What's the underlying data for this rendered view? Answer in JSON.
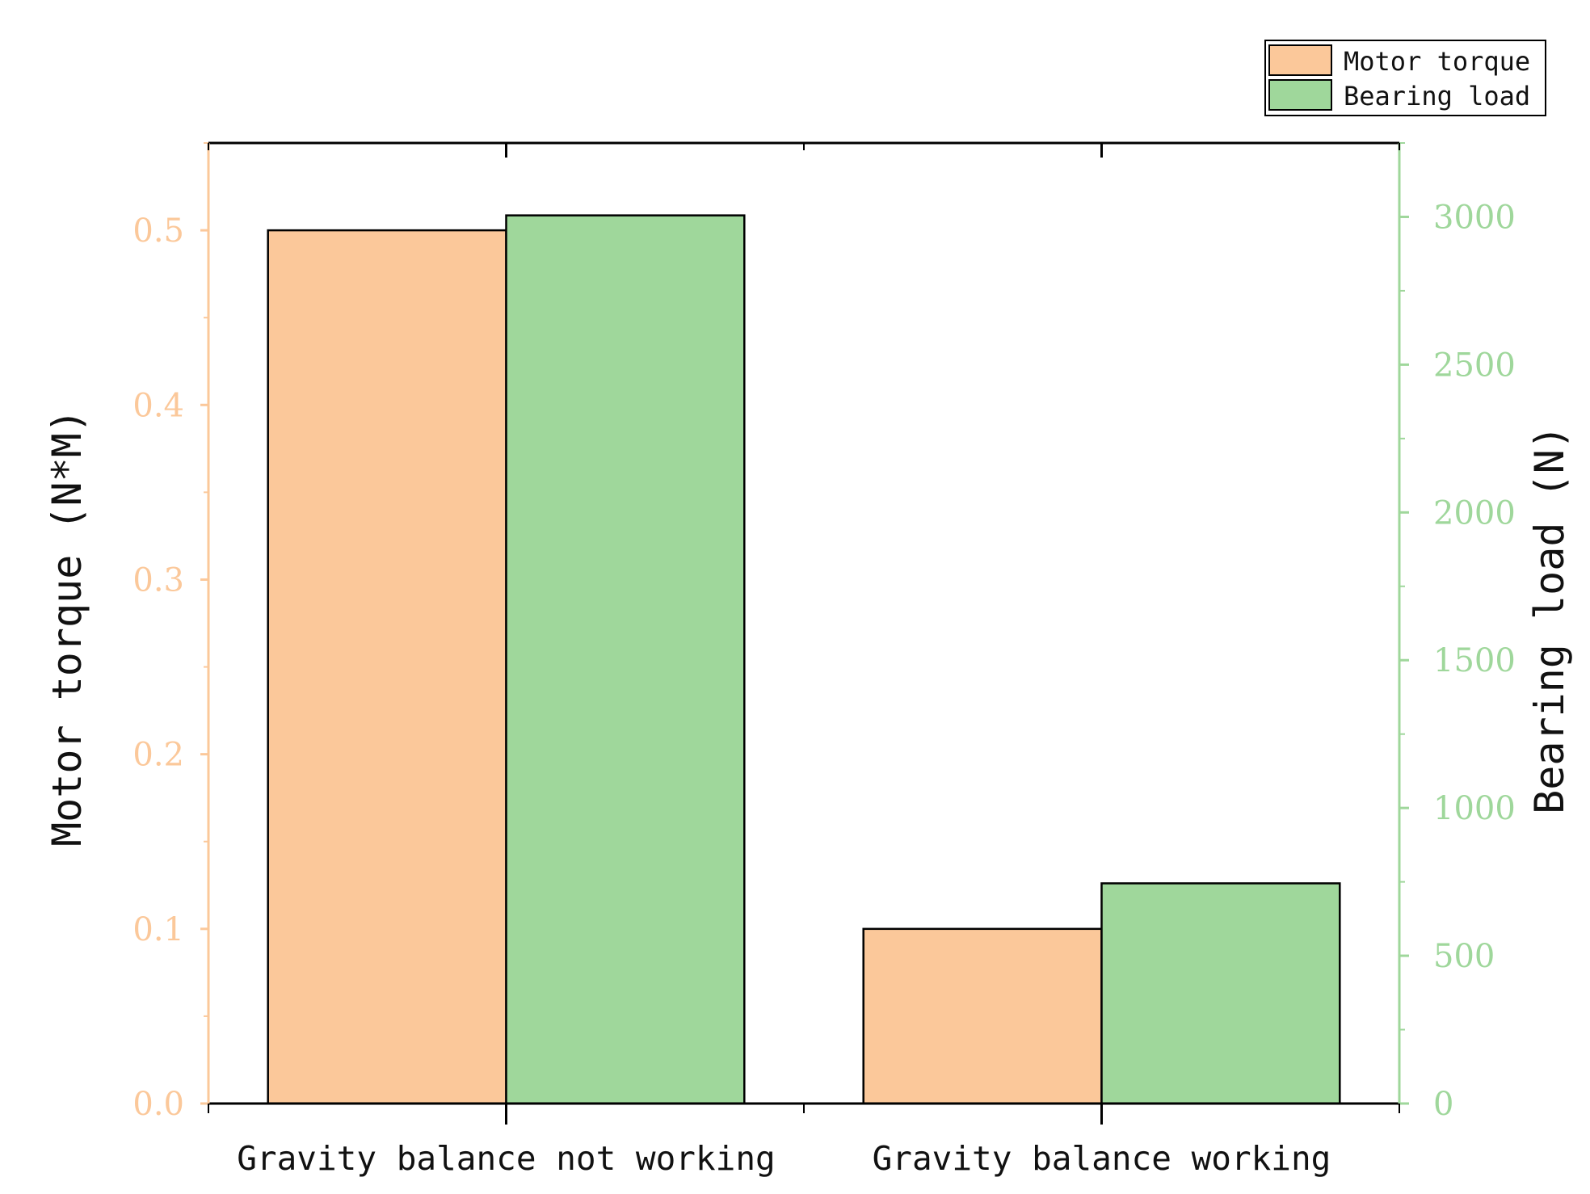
{
  "chart_data": {
    "type": "bar",
    "categories": [
      "Gravity balance not working",
      "Gravity balance working"
    ],
    "series": [
      {
        "name": "Motor torque",
        "axis": "left",
        "color": "#fbc89a",
        "values": [
          0.5,
          0.1
        ]
      },
      {
        "name": "Bearing load",
        "axis": "right",
        "color": "#9fd79b",
        "values": [
          3005,
          745
        ]
      }
    ],
    "left_axis": {
      "label": "Motor torque (N*M)",
      "ylim": [
        0,
        0.55
      ],
      "ticks": [
        "0.0",
        "0.1",
        "0.2",
        "0.3",
        "0.4",
        "0.5"
      ],
      "color": "#fbc89a"
    },
    "right_axis": {
      "label": "Bearing load (N)",
      "ylim": [
        0,
        3250
      ],
      "ticks": [
        "0",
        "500",
        "1000",
        "1500",
        "2000",
        "2500",
        "3000"
      ],
      "color": "#9fd79b"
    },
    "legend_position": "top-right",
    "grid": false
  }
}
